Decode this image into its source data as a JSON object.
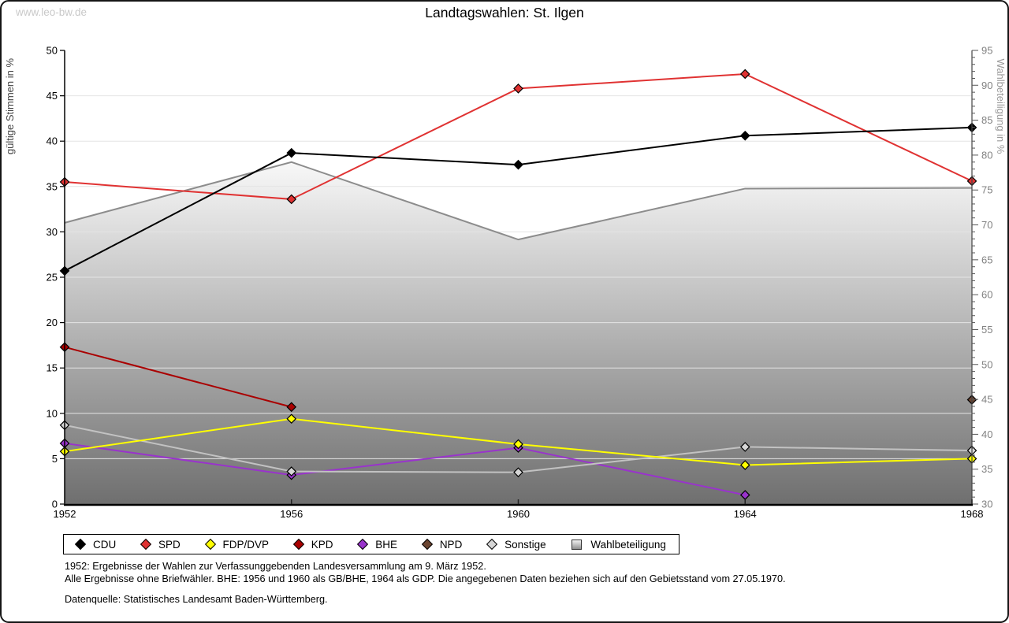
{
  "page": {
    "watermark": "www.leo-bw.de",
    "title": "Landtagswahlen: St. Ilgen"
  },
  "footnotes": {
    "line1": "1952: Ergebnisse der Wahlen zur Verfassunggebenden Landesversammlung am 9. März 1952.",
    "line2": "Alle Ergebnisse ohne Briefwähler. BHE: 1956 und 1960 als GB/BHE, 1964 als GDP. Die angegebenen Daten beziehen sich auf den Gebietsstand vom 27.05.1970.",
    "line3": "Datenquelle: Statistisches Landesamt Baden-Württemberg."
  },
  "chart_data": {
    "type": "line",
    "title": "Landtagswahlen: St. Ilgen",
    "x": [
      1952,
      1956,
      1960,
      1964,
      1968
    ],
    "xlim": [
      1952,
      1968
    ],
    "ylabel_left": "gültige Stimmen in %",
    "ylabel_right": "Wahlbeteiligung in %",
    "ylim_left": [
      0,
      50
    ],
    "ylim_right": [
      30,
      95
    ],
    "yticks_left": [
      0,
      5,
      10,
      15,
      20,
      25,
      30,
      35,
      40,
      45,
      50
    ],
    "yticks_right": [
      30,
      35,
      40,
      45,
      50,
      55,
      60,
      65,
      70,
      75,
      80,
      85,
      90,
      95
    ],
    "grid": true,
    "legend_position": "bottom",
    "series": [
      {
        "name": "CDU",
        "color": "#000000",
        "marker": "diamond",
        "axis": "left",
        "x": [
          1952,
          1956,
          1960,
          1964,
          1968
        ],
        "values": [
          25.7,
          38.7,
          37.4,
          40.6,
          41.5
        ]
      },
      {
        "name": "SPD",
        "color": "#e03232",
        "marker": "diamond",
        "axis": "left",
        "x": [
          1952,
          1956,
          1960,
          1964,
          1968
        ],
        "values": [
          35.5,
          33.6,
          45.8,
          47.4,
          35.6
        ]
      },
      {
        "name": "FDP/DVP",
        "color": "#ffff00",
        "marker": "diamond",
        "axis": "left",
        "x": [
          1952,
          1956,
          1960,
          1964,
          1968
        ],
        "values": [
          5.8,
          9.4,
          6.6,
          4.3,
          5.0
        ]
      },
      {
        "name": "KPD",
        "color": "#aa0000",
        "marker": "diamond",
        "axis": "left",
        "x": [
          1952,
          1956
        ],
        "values": [
          17.3,
          10.7
        ]
      },
      {
        "name": "BHE",
        "color": "#9933cc",
        "marker": "diamond",
        "axis": "left",
        "x": [
          1952,
          1956,
          1960,
          1964
        ],
        "values": [
          6.7,
          3.2,
          6.2,
          1.0
        ]
      },
      {
        "name": "NPD",
        "color": "#6b4430",
        "marker": "diamond",
        "axis": "left",
        "x": [
          1968
        ],
        "values": [
          11.5
        ]
      },
      {
        "name": "Sonstige",
        "color": "#d6d6d6",
        "line_color": "#c2c2c2",
        "marker": "diamond",
        "axis": "left",
        "x": [
          1952,
          1956,
          1960,
          1964,
          1968
        ],
        "values": [
          8.7,
          3.6,
          3.5,
          6.3,
          5.9
        ]
      },
      {
        "name": "Wahlbeteiligung",
        "type": "area",
        "color": "#b8b8b8",
        "edge_color": "#8c8c8c",
        "axis": "right",
        "x": [
          1952,
          1956,
          1960,
          1964,
          1968
        ],
        "values": [
          70.3,
          79.0,
          67.9,
          75.2,
          75.3
        ]
      }
    ]
  }
}
